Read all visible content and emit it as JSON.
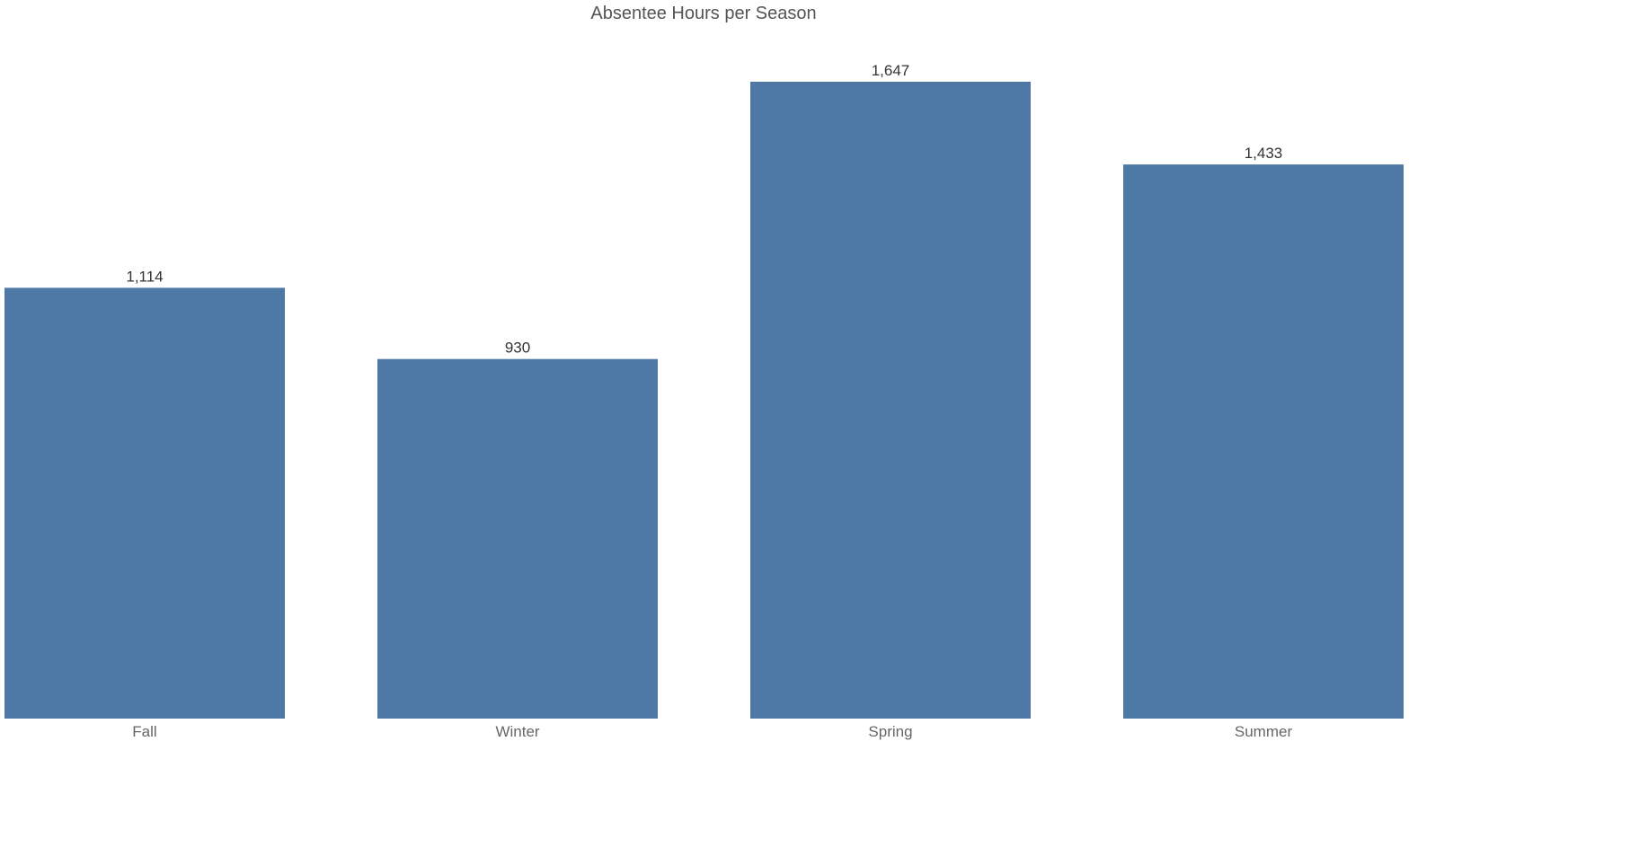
{
  "chart_data": {
    "type": "bar",
    "title": "Absentee Hours per Season",
    "categories": [
      "Fall",
      "Winter",
      "Spring",
      "Summer"
    ],
    "values": [
      1114,
      930,
      1647,
      1433
    ],
    "data_labels": [
      "1,114",
      "930",
      "1,647",
      "1,433"
    ],
    "xlabel": "",
    "ylabel": "",
    "ylim": [
      0,
      1647
    ],
    "grid": false,
    "legend": "none",
    "bar_color": "#4e79a7"
  }
}
